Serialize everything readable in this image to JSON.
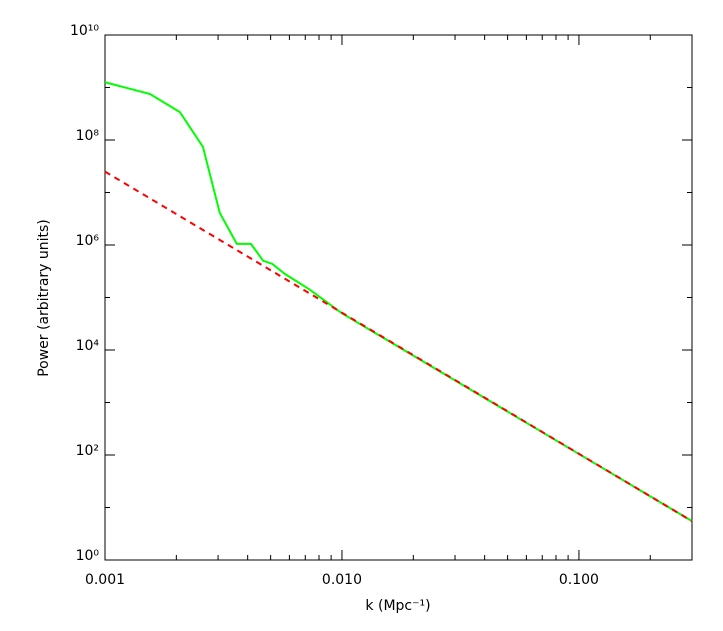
{
  "chart_data": {
    "type": "line",
    "xlabel": "k (Mpc⁻¹)",
    "ylabel": "Power (arbitrary units)",
    "xscale": "log",
    "yscale": "log",
    "xlim": [
      0.001,
      0.3
    ],
    "ylim": [
      1,
      10000000000
    ],
    "xticks": [
      0.001,
      {
        "value": 0.01,
        "label": "0.010"
      },
      {
        "value": 0.1,
        "label": "0.100"
      }
    ],
    "xminorticks": [
      0.002,
      0.003,
      0.004,
      0.005,
      0.006,
      0.007,
      0.008,
      0.009,
      0.02,
      0.03,
      0.04,
      0.05,
      0.06,
      0.07,
      0.08,
      0.09,
      0.2
    ],
    "yticks": [
      {
        "value": 1,
        "label": "10⁰"
      },
      {
        "value": 100,
        "label": "10²"
      },
      {
        "value": 10000,
        "label": "10⁴"
      },
      {
        "value": 1000000,
        "label": "10⁶"
      },
      {
        "value": 100000000,
        "label": "10⁸"
      },
      {
        "value": 10000000000,
        "label": "10¹⁰"
      }
    ],
    "yminorticks": [
      10,
      1000,
      100000,
      10000000,
      1000000000
    ],
    "series": [
      {
        "color": "#00ff00",
        "dash": false,
        "x": [
          0.001,
          0.00155,
          0.00207,
          0.00259,
          0.00305,
          0.0036,
          0.00413,
          0.00465,
          0.00507,
          0.00575,
          0.00733,
          0.01,
          0.3
        ],
        "values": [
          1260000000,
          750000000,
          340000000,
          74000000,
          4100000,
          1050000,
          1050000,
          500000,
          440000,
          280000,
          140000,
          50000,
          5.5
        ]
      },
      {
        "color": "#ff0000",
        "dash": true,
        "x": [
          0.001,
          0.3
        ],
        "values": [
          25000000,
          5.5
        ]
      }
    ]
  }
}
